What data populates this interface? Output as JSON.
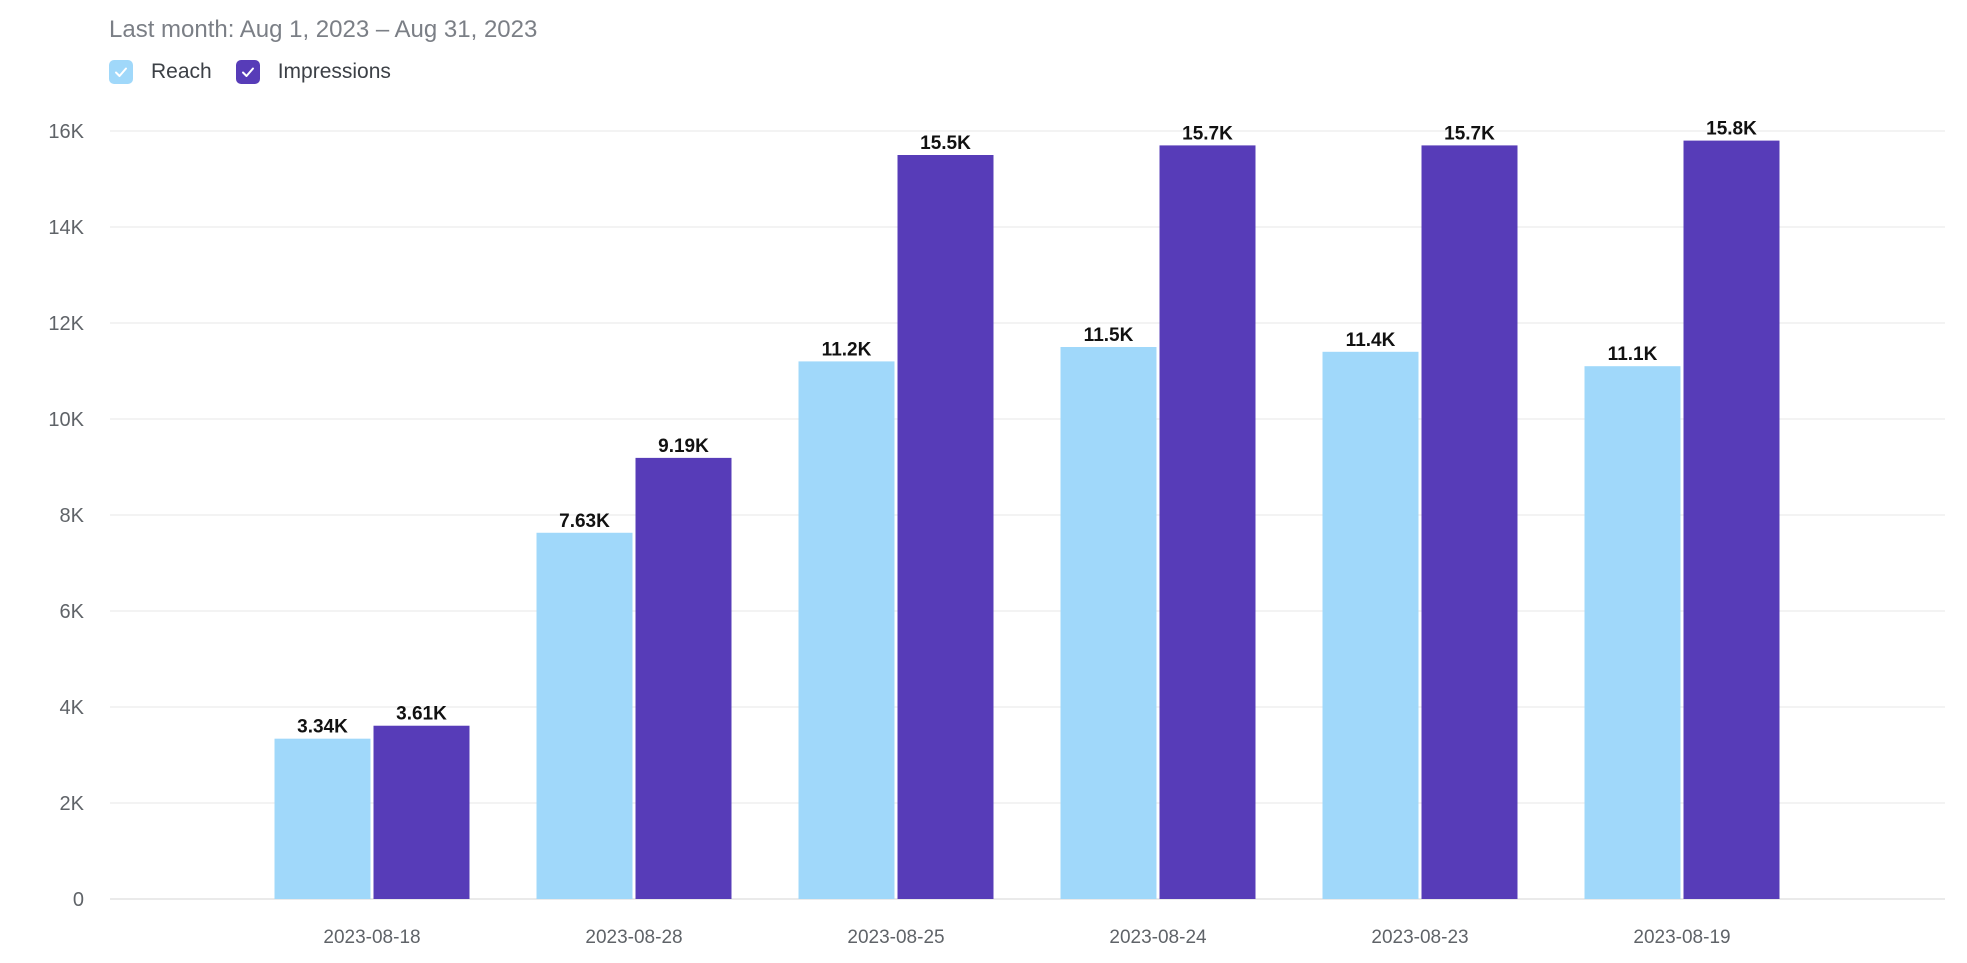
{
  "header": {
    "date_range": "Last month: Aug 1, 2023 – Aug 31, 2023"
  },
  "legend": {
    "items": [
      {
        "label": "Reach",
        "color": "#a0d8fa",
        "checked": true
      },
      {
        "label": "Impressions",
        "color": "#573cb8",
        "checked": true
      }
    ]
  },
  "chart_data": {
    "type": "bar",
    "title": "",
    "xlabel": "",
    "ylabel": "",
    "categories": [
      "2023-08-18",
      "2023-08-28",
      "2023-08-25",
      "2023-08-24",
      "2023-08-23",
      "2023-08-19"
    ],
    "series": [
      {
        "name": "Reach",
        "color": "#a0d8fa",
        "values": [
          3340,
          7630,
          11200,
          11500,
          11400,
          11100
        ],
        "labels": [
          "3.34K",
          "7.63K",
          "11.2K",
          "11.5K",
          "11.4K",
          "11.1K"
        ]
      },
      {
        "name": "Impressions",
        "color": "#573cb8",
        "values": [
          3610,
          9190,
          15500,
          15700,
          15700,
          15800
        ],
        "labels": [
          "3.61K",
          "9.19K",
          "15.5K",
          "15.7K",
          "15.7K",
          "15.8K"
        ]
      }
    ],
    "ylim": [
      0,
      16000
    ],
    "yticks": [
      0,
      2000,
      4000,
      6000,
      8000,
      10000,
      12000,
      14000,
      16000
    ],
    "ytick_labels": [
      "0",
      "2K",
      "4K",
      "6K",
      "8K",
      "10K",
      "12K",
      "14K",
      "16K"
    ],
    "grid": true
  }
}
